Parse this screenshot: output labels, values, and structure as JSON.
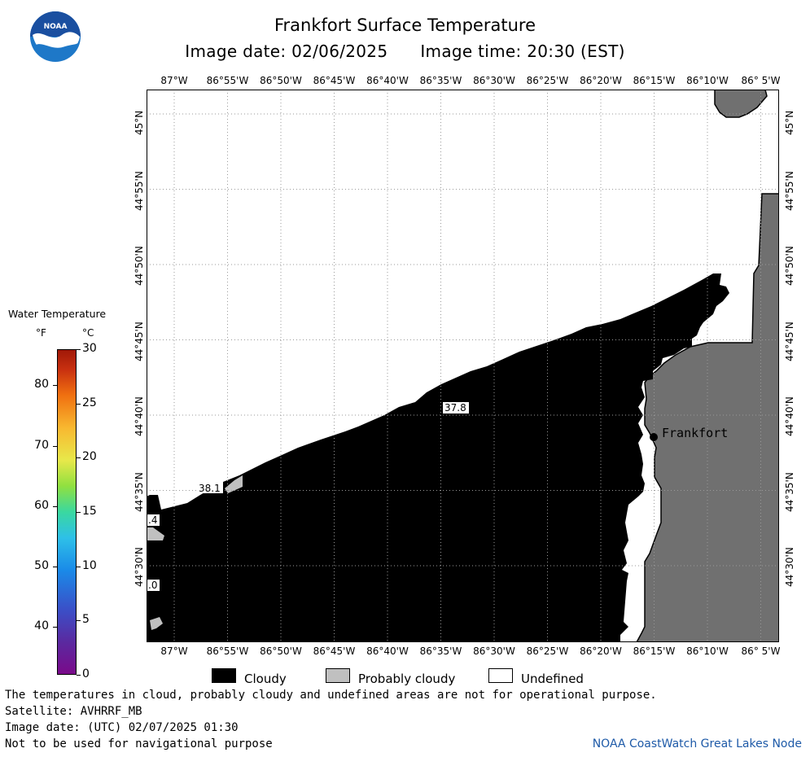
{
  "title": "Frankfort Surface Temperature",
  "image_date_label": "Image date: 02/06/2025",
  "image_time_label": "Image time: 20:30 (EST)",
  "logo": {
    "text": "NOAA",
    "icon": "noaa-logo-icon",
    "color_top": "#1a4fa0",
    "color_bottom": "#1e78c8"
  },
  "longitude_ticks": [
    "87°W",
    "86°55'W",
    "86°50'W",
    "86°45'W",
    "86°40'W",
    "86°35'W",
    "86°30'W",
    "86°25'W",
    "86°20'W",
    "86°15'W",
    "86°10'W",
    "86° 5'W"
  ],
  "latitude_ticks": [
    "45°N",
    "44°55'N",
    "44°50'N",
    "44°45'N",
    "44°40'N",
    "44°35'N",
    "44°30'N"
  ],
  "map_labels": {
    "city": "Frankfort",
    "temp_1": "37.8",
    "temp_2": "38.1",
    "temp_3": ".4",
    "temp_4": ".0"
  },
  "colors": {
    "cloudy": "#000000",
    "probably_cloudy": "#c0c0c0",
    "undefined": "#ffffff",
    "land": "#707070",
    "grid": "#b0b0b0"
  },
  "legend": {
    "title": "Water Temperature",
    "unit_f": "°F",
    "unit_c": "°C",
    "f_ticks": [
      "80",
      "70",
      "60",
      "50",
      "40"
    ],
    "c_ticks": [
      "30",
      "25",
      "20",
      "15",
      "10",
      "5",
      "0"
    ],
    "cloudy_label": "Cloudy",
    "probably_cloudy_label": "Probably cloudy",
    "undefined_label": "Undefined"
  },
  "notes": {
    "line1": "The temperatures in cloud, probably cloudy and undefined areas are not for operational purpose.",
    "line2": "Satellite: AVHRRF_MB",
    "line3": "Image date: (UTC) 02/07/2025  01:30",
    "line4": "Not to be used for navigational purpose"
  },
  "credit": "NOAA CoastWatch Great Lakes Node"
}
